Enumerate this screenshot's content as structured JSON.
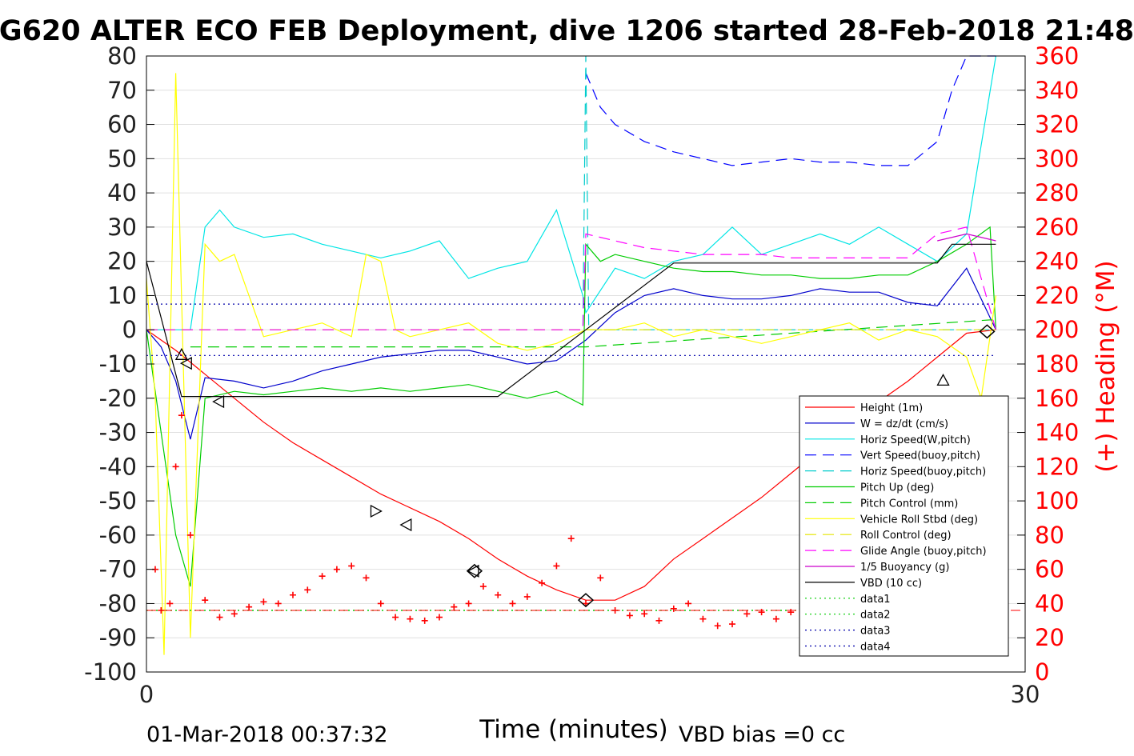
{
  "chart_data": {
    "type": "line",
    "title": "G620 ALTER ECO FEB Deployment, dive 1206 started 28-Feb-2018 21:48",
    "xlabel": "Time (minutes)",
    "ylabel_right": "(+) Heading (°M)",
    "xlim": [
      0,
      30
    ],
    "ylim": [
      -100,
      80
    ],
    "y2lim": [
      0,
      360
    ],
    "xticks": [
      "0",
      "30"
    ],
    "yticks": [
      "80",
      "70",
      "60",
      "50",
      "40",
      "30",
      "20",
      "10",
      "0",
      "-10",
      "-20",
      "-30",
      "-40",
      "-50",
      "-60",
      "-70",
      "-80",
      "-90",
      "-100"
    ],
    "y2ticks": [
      "360",
      "340",
      "320",
      "300",
      "280",
      "260",
      "240",
      "220",
      "200",
      "180",
      "160",
      "140",
      "120",
      "100",
      "80",
      "60",
      "40",
      "20",
      "0"
    ],
    "grid": true,
    "legend_position": "lower-right",
    "footer_left": "01-Mar-2018 00:37:32",
    "footer_right": "VBD bias =0 cc",
    "colors": {
      "height": "#ff0000",
      "w": "#0000cc",
      "hspeed": "#00e5e5",
      "vspeed_buoy": "#0000ff",
      "hspeed_buoy": "#00cccc",
      "pitch": "#00cc00",
      "pitch_ctrl": "#00cc00",
      "roll": "#ffff00",
      "roll_ctrl": "#e5e500",
      "glide": "#ff00ff",
      "buoy": "#cc00cc",
      "vbd": "#000000",
      "data_green": "#00cc00",
      "data_blue": "#0000aa",
      "heading": "#ff0000"
    },
    "series": [
      {
        "name": "Height (1m)",
        "color": "height",
        "dash": "solid",
        "x": [
          0,
          1,
          2,
          3,
          4,
          5,
          6,
          7,
          8,
          9,
          10,
          11,
          12,
          13,
          14,
          15,
          16,
          17,
          18,
          19,
          20,
          21,
          22,
          23,
          24,
          25,
          26,
          27,
          28,
          29
        ],
        "y": [
          0,
          -6,
          -13,
          -20,
          -27,
          -33,
          -38,
          -43,
          -48,
          -52,
          -56,
          -61,
          -67,
          -72,
          -76,
          -79,
          -79,
          -75,
          -67,
          -61,
          -55,
          -49,
          -42,
          -35,
          -28,
          -21,
          -15,
          -8,
          -1,
          0
        ]
      },
      {
        "name": "W = dz/dt (cm/s)",
        "color": "w",
        "dash": "solid",
        "x": [
          0,
          0.5,
          1,
          1.5,
          2,
          3,
          4,
          5,
          6,
          7,
          8,
          9,
          10,
          11,
          12,
          13,
          14,
          15,
          16,
          17,
          18,
          19,
          20,
          21,
          22,
          23,
          24,
          25,
          26,
          27,
          28,
          29
        ],
        "y": [
          0,
          -5,
          -15,
          -32,
          -14,
          -15,
          -17,
          -15,
          -12,
          -10,
          -8,
          -7,
          -6,
          -6,
          -8,
          -10,
          -9,
          -3,
          5,
          10,
          12,
          10,
          9,
          9,
          10,
          12,
          11,
          11,
          8,
          7,
          18,
          0
        ]
      },
      {
        "name": "Horiz Speed(W,pitch)",
        "color": "hspeed",
        "dash": "solid",
        "x": [
          0,
          0.5,
          1,
          1.5,
          2,
          2.5,
          3,
          4,
          5,
          6,
          7,
          8,
          9,
          10,
          11,
          12,
          13,
          14,
          14.9,
          15,
          16,
          17,
          18,
          19,
          20,
          21,
          22,
          23,
          24,
          25,
          26,
          27,
          28,
          29
        ],
        "y": [
          0,
          0,
          0,
          0,
          30,
          35,
          30,
          27,
          28,
          25,
          23,
          21,
          23,
          26,
          15,
          18,
          20,
          35,
          10,
          5,
          18,
          15,
          20,
          22,
          30,
          22,
          25,
          28,
          25,
          30,
          25,
          20,
          28,
          80
        ]
      },
      {
        "name": "Vert Speed(buoy,pitch)",
        "color": "vspeed_buoy",
        "dash": "dash",
        "x": [
          15,
          15.5,
          16,
          17,
          18,
          19,
          20,
          21,
          22,
          23,
          24,
          25,
          26,
          27,
          27.5,
          28,
          29
        ],
        "y": [
          75,
          65,
          60,
          55,
          52,
          50,
          48,
          49,
          50,
          49,
          49,
          48,
          48,
          55,
          70,
          80,
          80
        ]
      },
      {
        "name": "Horiz Speed(buoy,pitch)",
        "color": "hspeed_buoy",
        "dash": "dash",
        "x": [
          0,
          14.9,
          15,
          15.1,
          29
        ],
        "y": [
          0,
          0,
          80,
          0,
          0
        ]
      },
      {
        "name": "Pitch Up (deg)",
        "color": "pitch",
        "dash": "solid",
        "x": [
          0,
          1,
          1.5,
          2,
          3,
          4,
          5,
          6,
          7,
          8,
          9,
          10,
          11,
          12,
          13,
          14,
          14.9,
          15,
          15.5,
          16,
          17,
          18,
          19,
          20,
          21,
          22,
          23,
          24,
          25,
          26,
          27,
          28,
          28.8,
          29
        ],
        "y": [
          0,
          -60,
          -75,
          -20,
          -18,
          -19,
          -18,
          -17,
          -18,
          -17,
          -18,
          -17,
          -16,
          -18,
          -20,
          -18,
          -22,
          25,
          20,
          22,
          20,
          18,
          17,
          17,
          16,
          16,
          15,
          15,
          16,
          16,
          20,
          25,
          30,
          0
        ]
      },
      {
        "name": "Pitch Control (mm)",
        "color": "pitch_ctrl",
        "dash": "dash",
        "x": [
          1.5,
          15,
          29
        ],
        "y": [
          -5,
          -5,
          3
        ]
      },
      {
        "name": "Vehicle Roll Stbd (deg)",
        "color": "roll",
        "dash": "solid",
        "x": [
          0,
          0.3,
          0.6,
          1,
          1.5,
          2,
          2.5,
          3,
          4,
          5,
          6,
          7,
          7.5,
          8,
          8.5,
          9,
          10,
          11,
          12,
          13,
          14,
          15,
          16,
          17,
          18,
          19,
          20,
          21,
          22,
          23,
          24,
          25,
          26,
          27,
          28,
          28.5,
          29
        ],
        "y": [
          15,
          -20,
          -95,
          75,
          -90,
          25,
          20,
          22,
          -2,
          0,
          2,
          -2,
          22,
          20,
          0,
          -2,
          0,
          2,
          -4,
          -6,
          -4,
          0,
          0,
          2,
          -2,
          0,
          -2,
          -4,
          -2,
          0,
          2,
          -3,
          0,
          -2,
          -8,
          -20,
          10
        ]
      },
      {
        "name": "Roll Control (deg)",
        "color": "roll_ctrl",
        "dash": "dash",
        "x": [
          0,
          29
        ],
        "y": [
          0,
          0
        ]
      },
      {
        "name": "Glide Angle (buoy,pitch)",
        "color": "glide",
        "dash": "dash",
        "x": [
          0,
          14.9,
          15,
          16,
          17,
          18,
          19,
          20,
          21,
          22,
          23,
          24,
          25,
          26,
          27,
          28,
          29
        ],
        "y": [
          0,
          0,
          28,
          26,
          24,
          23,
          22,
          22,
          22,
          21,
          21,
          21,
          21,
          21,
          28,
          30,
          0
        ]
      },
      {
        "name": "1/5 Buoyancy (g)",
        "color": "buoy",
        "dash": "solid",
        "x": [
          27,
          28,
          29
        ],
        "y": [
          26,
          28,
          26
        ]
      },
      {
        "name": "VBD (10 cc)",
        "color": "vbd",
        "dash": "solid",
        "x": [
          0,
          1.2,
          12,
          15,
          18,
          27,
          27.5,
          29
        ],
        "y": [
          20,
          -19.5,
          -19.5,
          0,
          19.5,
          19.5,
          25,
          25
        ]
      },
      {
        "name": "data1",
        "color": "data_green",
        "dash": "dot",
        "x": [
          0,
          29
        ],
        "y": [
          -82,
          -82
        ]
      },
      {
        "name": "data2",
        "color": "data_green",
        "dash": "dot",
        "x": [
          0,
          29
        ],
        "y": [
          -82,
          -82
        ]
      },
      {
        "name": "data3",
        "color": "data_blue",
        "dash": "dot",
        "x": [
          0,
          29
        ],
        "y": [
          7.5,
          7.5
        ]
      },
      {
        "name": "data4",
        "color": "data_blue",
        "dash": "dot",
        "x": [
          0,
          29
        ],
        "y": [
          -7.5,
          -7.5
        ]
      }
    ],
    "heading": {
      "axis": "right",
      "mean": 36,
      "x": [
        0.3,
        0.5,
        0.8,
        1,
        1.2,
        1.5,
        2,
        2.5,
        3,
        3.5,
        4,
        4.5,
        5,
        5.5,
        6,
        6.5,
        7,
        7.5,
        8,
        8.5,
        9,
        9.5,
        10,
        10.5,
        11,
        11.5,
        12,
        12.5,
        13,
        13.5,
        14,
        14.5,
        15,
        15.5,
        16,
        16.5,
        17,
        17.5,
        18,
        18.5,
        19,
        19.5,
        20,
        20.5,
        21,
        21.5,
        22,
        22.5,
        23,
        23.5,
        24,
        24.5,
        25,
        25.5,
        26,
        26.5,
        27,
        27.5,
        28
      ],
      "y": [
        60,
        36,
        40,
        120,
        150,
        80,
        42,
        32,
        34,
        38,
        41,
        40,
        45,
        48,
        56,
        60,
        62,
        55,
        40,
        32,
        31,
        30,
        32,
        38,
        40,
        50,
        45,
        40,
        44,
        52,
        62,
        78,
        40,
        55,
        36,
        33,
        34,
        30,
        37,
        40,
        31,
        27,
        28,
        34,
        35,
        31,
        35,
        30,
        32,
        36,
        33,
        30,
        32,
        31,
        26,
        36,
        32,
        33,
        34
      ]
    },
    "markers": {
      "triangle_up": [
        [
          1.2,
          -7.5
        ],
        [
          27.2,
          -15
        ]
      ],
      "triangle_left": [
        [
          1.4,
          -9.8
        ],
        [
          2.5,
          -21
        ],
        [
          8.9,
          -57
        ],
        [
          11.2,
          -70.5
        ]
      ],
      "triangle_right": [
        [
          7.8,
          -53
        ]
      ],
      "diamond": [
        [
          11.2,
          -70.5
        ],
        [
          15,
          -79
        ],
        [
          28.7,
          -0.5
        ]
      ]
    }
  }
}
